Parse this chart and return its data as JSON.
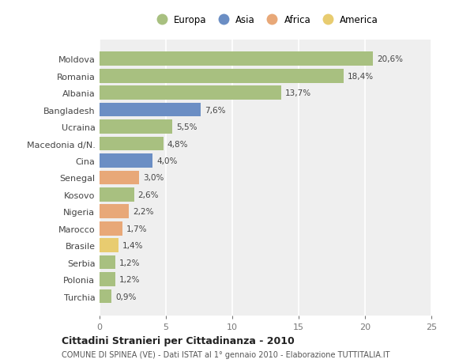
{
  "countries": [
    "Moldova",
    "Romania",
    "Albania",
    "Bangladesh",
    "Ucraina",
    "Macedonia d/N.",
    "Cina",
    "Senegal",
    "Kosovo",
    "Nigeria",
    "Marocco",
    "Brasile",
    "Serbia",
    "Polonia",
    "Turchia"
  ],
  "values": [
    20.6,
    18.4,
    13.7,
    7.6,
    5.5,
    4.8,
    4.0,
    3.0,
    2.6,
    2.2,
    1.7,
    1.4,
    1.2,
    1.2,
    0.9
  ],
  "labels": [
    "20,6%",
    "18,4%",
    "13,7%",
    "7,6%",
    "5,5%",
    "4,8%",
    "4,0%",
    "3,0%",
    "2,6%",
    "2,2%",
    "1,7%",
    "1,4%",
    "1,2%",
    "1,2%",
    "0,9%"
  ],
  "continents": [
    "Europa",
    "Europa",
    "Europa",
    "Asia",
    "Europa",
    "Europa",
    "Asia",
    "Africa",
    "Europa",
    "Africa",
    "Africa",
    "America",
    "Europa",
    "Europa",
    "Europa"
  ],
  "colors": {
    "Europa": "#a8c080",
    "Asia": "#6b8ec4",
    "Africa": "#e8a878",
    "America": "#e8cc70"
  },
  "legend_order": [
    "Europa",
    "Asia",
    "Africa",
    "America"
  ],
  "title": "Cittadini Stranieri per Cittadinanza - 2010",
  "subtitle": "COMUNE DI SPINEA (VE) - Dati ISTAT al 1° gennaio 2010 - Elaborazione TUTTITALIA.IT",
  "xlim": [
    0,
    25
  ],
  "xticks": [
    0,
    5,
    10,
    15,
    20,
    25
  ],
  "background_color": "#ffffff",
  "plot_background": "#efefef",
  "grid_color": "#ffffff",
  "bar_height": 0.82
}
